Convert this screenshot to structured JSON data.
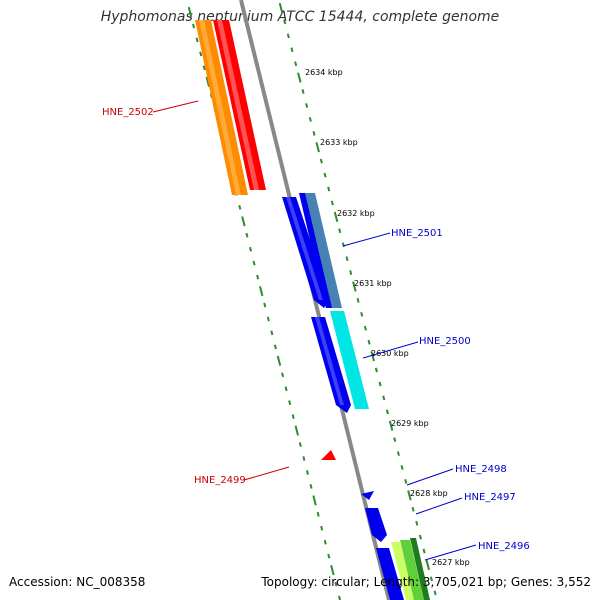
{
  "title": "Hyphomonas neptunium ATCC 15444, complete genome",
  "footer": {
    "accession": "Accession: NC_008358",
    "summary": "Topology: circular; Length: 3,705,021 bp; Genes: 3,552"
  },
  "ticks": [
    "2634 kbp",
    "2633 kbp",
    "2632 kbp",
    "2631 kbp",
    "2630 kbp",
    "2629 kbp",
    "2628 kbp",
    "2627 kbp"
  ],
  "gene_labels": [
    {
      "name": "HNE_2502",
      "color": "#cc0000"
    },
    {
      "name": "HNE_2501",
      "color": "#0000cc"
    },
    {
      "name": "HNE_2500",
      "color": "#0000cc"
    },
    {
      "name": "HNE_2499",
      "color": "#cc0000"
    },
    {
      "name": "HNE_2498",
      "color": "#0000cc"
    },
    {
      "name": "HNE_2497",
      "color": "#0000cc"
    },
    {
      "name": "HNE_2496",
      "color": "#0000cc"
    }
  ],
  "colors": {
    "backbone": "#888888",
    "tick": "#2e8b2e",
    "forward_gene": "#0000ee",
    "reverse_gene": "#ff0000",
    "orange_track": "#ff8c00",
    "cyan_track": "#00e5e5",
    "green_track": "#228b22"
  }
}
